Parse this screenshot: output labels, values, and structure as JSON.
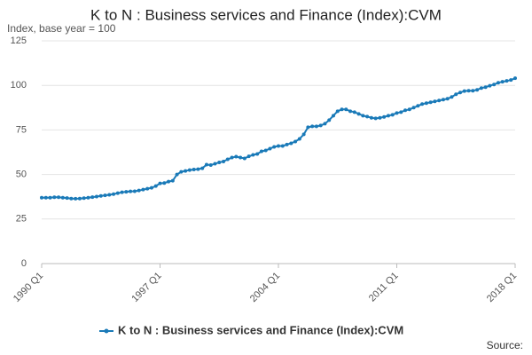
{
  "chart_data": {
    "type": "line",
    "title": "K to N : Business services and Finance (Index):CVM",
    "subtitle": "Index, base year = 100",
    "source": "Source:",
    "categories": [
      "1990 Q1",
      null,
      null,
      null,
      null,
      null,
      null,
      null,
      null,
      null,
      null,
      null,
      null,
      null,
      null,
      null,
      null,
      null,
      null,
      null,
      null,
      null,
      null,
      null,
      null,
      null,
      null,
      null,
      "1997 Q1",
      null,
      null,
      null,
      null,
      null,
      null,
      null,
      null,
      null,
      null,
      null,
      null,
      null,
      null,
      null,
      null,
      null,
      null,
      null,
      null,
      null,
      null,
      null,
      null,
      null,
      null,
      null,
      "2004 Q1",
      null,
      null,
      null,
      null,
      null,
      null,
      null,
      null,
      null,
      null,
      null,
      null,
      null,
      null,
      null,
      null,
      null,
      null,
      null,
      null,
      null,
      null,
      null,
      null,
      null,
      null,
      null,
      "2011 Q1",
      null,
      null,
      null,
      null,
      null,
      null,
      null,
      null,
      null,
      null,
      null,
      null,
      null,
      null,
      null,
      null,
      null,
      null,
      null,
      null,
      null,
      null,
      null,
      null,
      null,
      null,
      null,
      "2018 Q1"
    ],
    "series": [
      {
        "name": "K to N : Business services and Finance (Index):CVM",
        "color": "#1a7ab8",
        "values": [
          37,
          37,
          37,
          37.2,
          37.2,
          37,
          36.8,
          36.5,
          36.4,
          36.5,
          36.7,
          37,
          37.3,
          37.6,
          38,
          38.3,
          38.6,
          39,
          39.5,
          40,
          40.3,
          40.5,
          40.6,
          41,
          41.5,
          42,
          42.5,
          43.5,
          45,
          45.2,
          46,
          46.5,
          50,
          51.5,
          52,
          52.5,
          52.8,
          53,
          53.5,
          55.5,
          55.3,
          56,
          56.8,
          57.3,
          58.5,
          59.5,
          60,
          59.5,
          59,
          60.2,
          61,
          61.5,
          63,
          63.5,
          64.5,
          65.5,
          66,
          66,
          66.8,
          67.5,
          68.5,
          70,
          72.5,
          76.5,
          77,
          77,
          77.5,
          78.5,
          80.5,
          83,
          85.5,
          86.5,
          86.5,
          85.5,
          85,
          84,
          83,
          82.5,
          81.8,
          81.5,
          81.8,
          82.3,
          83,
          83.5,
          84.5,
          85,
          86,
          86.5,
          87.5,
          88.5,
          89.5,
          90,
          90.5,
          91,
          91.5,
          92,
          92.5,
          93.5,
          95,
          96,
          96.8,
          97,
          97,
          97.5,
          98.5,
          99,
          99.8,
          100.5,
          101.5,
          102,
          102.5,
          103,
          104
        ]
      }
    ],
    "ylim": [
      0,
      125
    ],
    "yticks": [
      0,
      25,
      50,
      75,
      100,
      125
    ],
    "grid": true,
    "markers": true
  }
}
